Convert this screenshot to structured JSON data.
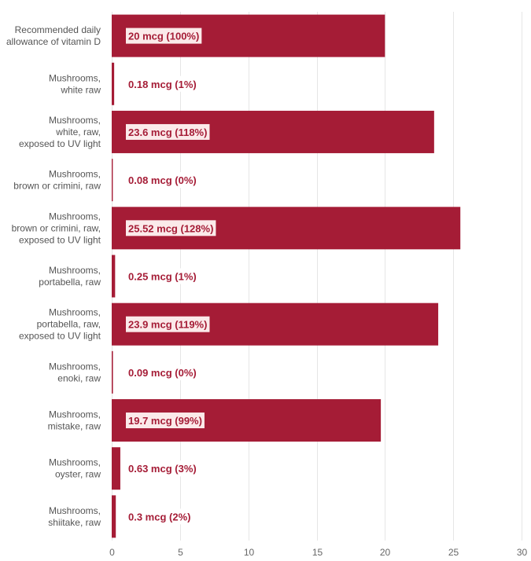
{
  "chart_data": {
    "type": "bar",
    "orientation": "horizontal",
    "categories": [
      [
        "Recommended daily",
        "allowance of vitamin D"
      ],
      [
        "Mushrooms,",
        "white raw"
      ],
      [
        "Mushrooms,",
        "white, raw,",
        "exposed to UV light"
      ],
      [
        "Mushrooms,",
        "brown or crimini, raw"
      ],
      [
        "Mushrooms,",
        "brown or crimini, raw,",
        "exposed to UV light"
      ],
      [
        "Mushrooms,",
        "portabella, raw"
      ],
      [
        "Mushrooms,",
        "portabella, raw,",
        "exposed to UV light"
      ],
      [
        "Mushrooms,",
        "enoki, raw"
      ],
      [
        "Mushrooms,",
        "mistake, raw"
      ],
      [
        "Mushrooms,",
        "oyster, raw"
      ],
      [
        "Mushrooms,",
        "shiitake, raw"
      ]
    ],
    "values": [
      20,
      0.18,
      23.6,
      0.08,
      25.52,
      0.25,
      23.9,
      0.09,
      19.7,
      0.63,
      0.3
    ],
    "data_labels": [
      "20 mcg (100%)",
      "0.18 mcg (1%)",
      "23.6 mcg (118%)",
      "0.08 mcg (0%)",
      "25.52 mcg (128%)",
      "0.25 mcg (1%)",
      "23.9 mcg (119%)",
      "0.09 mcg (0%)",
      "19.7 mcg (99%)",
      "0.63 mcg (3%)",
      "0.3 mcg (2%)"
    ],
    "xlim": [
      0,
      30
    ],
    "xticks": [
      0,
      5,
      10,
      15,
      20,
      25,
      30
    ],
    "grid": true,
    "bar_color": "#a51c36",
    "label_color": "#a51c36",
    "label_box_color": "#fbeaea",
    "title": "",
    "xlabel": "",
    "ylabel": ""
  }
}
